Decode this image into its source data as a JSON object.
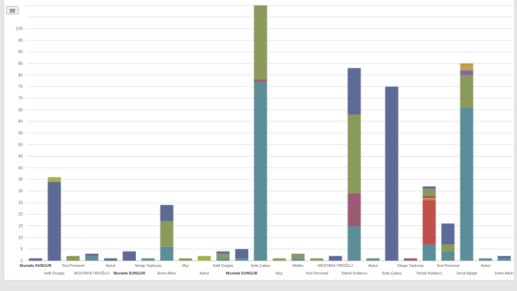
{
  "menu": {
    "icon": "hamburger-menu-icon"
  },
  "chart_data": {
    "type": "bar",
    "stacked": true,
    "title": "",
    "xlabel": "",
    "ylabel": "",
    "ylim": [
      0,
      110
    ],
    "y_ticks": [
      0,
      5,
      10,
      15,
      20,
      25,
      30,
      35,
      40,
      45,
      50,
      55,
      60,
      65,
      70,
      75,
      80,
      85,
      90,
      95,
      100
    ],
    "grid": true,
    "legend": "none",
    "colors": {
      "teal": "#5b8e98",
      "red": "#c0504d",
      "mauve": "#9b5a72",
      "green": "#8a9a5b",
      "olive": "#a8b04e",
      "orange": "#d68a3a",
      "purple": "#8e5fa5",
      "navy": "#5d6a96"
    },
    "categories": [
      "Mustafa SUNGUR",
      "Halil Durgaç",
      "Test Personel",
      "MUSTAFA TIROĞLU",
      "Aykut",
      "Mustafa SUNGUR",
      "Simge Taşkınay",
      "Emre Altun",
      "Mçy",
      "Aykut",
      "Halil Durgaç",
      "Mustafa SUNGUR",
      "Sefa Çaksu",
      "Mçy",
      "Melike",
      "Test Personel",
      "MUSTAFA TIROĞLU",
      "Teknik Kullanıcı",
      "Aykut",
      "Sefa Çaksu",
      "Simge Taşkınay",
      "Teknik Kullanıcı",
      "Test Personel",
      "Umut Ağagil",
      "Aykut",
      "Emre Altun"
    ],
    "bold_categories": [
      0,
      5,
      11
    ],
    "label_row": [
      0,
      1,
      0,
      1,
      0,
      1,
      0,
      1,
      0,
      1,
      0,
      1,
      0,
      1,
      0,
      1,
      0,
      1,
      0,
      1,
      0,
      1,
      0,
      1,
      0,
      1
    ],
    "segments": [
      [
        {
          "c": "navy",
          "v": 1
        }
      ],
      [
        {
          "c": "navy",
          "v": 34
        },
        {
          "c": "olive",
          "v": 2
        }
      ],
      [
        {
          "c": "green",
          "v": 2
        }
      ],
      [
        {
          "c": "teal",
          "v": 2
        },
        {
          "c": "navy",
          "v": 1
        }
      ],
      [
        {
          "c": "navy",
          "v": 1
        }
      ],
      [
        {
          "c": "navy",
          "v": 4
        }
      ],
      [
        {
          "c": "teal",
          "v": 1
        }
      ],
      [
        {
          "c": "teal",
          "v": 6
        },
        {
          "c": "green",
          "v": 11
        },
        {
          "c": "navy",
          "v": 7
        }
      ],
      [
        {
          "c": "green",
          "v": 1
        }
      ],
      [
        {
          "c": "olive",
          "v": 2
        }
      ],
      [
        {
          "c": "teal",
          "v": 1
        },
        {
          "c": "green",
          "v": 2
        },
        {
          "c": "navy",
          "v": 1
        }
      ],
      [
        {
          "c": "teal",
          "v": 1
        },
        {
          "c": "navy",
          "v": 4
        }
      ],
      [
        {
          "c": "teal",
          "v": 77
        },
        {
          "c": "mauve",
          "v": 1
        },
        {
          "c": "green",
          "v": 32
        }
      ],
      [
        {
          "c": "green",
          "v": 1
        }
      ],
      [
        {
          "c": "teal",
          "v": 1
        },
        {
          "c": "green",
          "v": 2
        }
      ],
      [
        {
          "c": "green",
          "v": 1
        }
      ],
      [
        {
          "c": "navy",
          "v": 2
        }
      ],
      [
        {
          "c": "teal",
          "v": 15
        },
        {
          "c": "mauve",
          "v": 14
        },
        {
          "c": "green",
          "v": 34
        },
        {
          "c": "navy",
          "v": 20
        }
      ],
      [
        {
          "c": "teal",
          "v": 1
        }
      ],
      [
        {
          "c": "navy",
          "v": 75
        }
      ],
      [
        {
          "c": "mauve",
          "v": 1
        }
      ],
      [
        {
          "c": "teal",
          "v": 7
        },
        {
          "c": "red",
          "v": 19
        },
        {
          "c": "orange",
          "v": 1
        },
        {
          "c": "mauve",
          "v": 1
        },
        {
          "c": "green",
          "v": 3
        },
        {
          "c": "navy",
          "v": 1
        }
      ],
      [
        {
          "c": "teal",
          "v": 4
        },
        {
          "c": "green",
          "v": 3
        },
        {
          "c": "navy",
          "v": 9
        }
      ],
      [
        {
          "c": "teal",
          "v": 66
        },
        {
          "c": "green",
          "v": 14
        },
        {
          "c": "purple",
          "v": 2
        },
        {
          "c": "olive",
          "v": 2
        },
        {
          "c": "orange",
          "v": 1
        }
      ],
      [
        {
          "c": "teal",
          "v": 1
        }
      ],
      [
        {
          "c": "teal",
          "v": 1
        },
        {
          "c": "navy",
          "v": 1
        }
      ]
    ]
  }
}
